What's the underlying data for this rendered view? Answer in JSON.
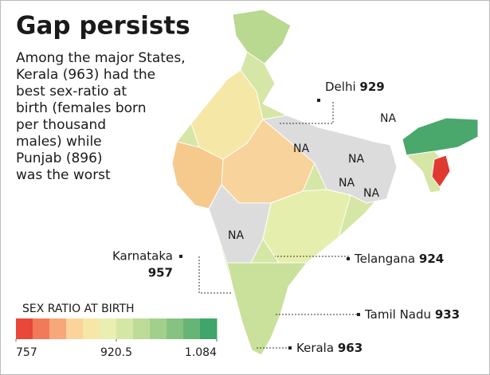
{
  "header": {
    "title": "Gap persists",
    "description": [
      "Among the major States,",
      "Kerala (963) had the",
      "best sex-ratio at",
      "birth (females born",
      "per thousand",
      "males) while",
      "Punjab (896)",
      "was the worst"
    ]
  },
  "callouts": [
    {
      "name": "Delhi",
      "value": 929
    },
    {
      "name": "Karnataka",
      "value": 957
    },
    {
      "name": "Telangana",
      "value": 924
    },
    {
      "name": "Tamil Nadu",
      "value": 933
    },
    {
      "name": "Kerala",
      "value": 963
    }
  ],
  "na_labels": [
    "NA",
    "NA",
    "NA",
    "NA",
    "NA",
    "NA"
  ],
  "legend": {
    "title": "SEX RATIO AT BIRTH",
    "colors": [
      "#e8473a",
      "#f07a5a",
      "#f6a87a",
      "#fbd49c",
      "#f7e7a6",
      "#e9efb0",
      "#d4e7a4",
      "#bcdc98",
      "#a2d08c",
      "#86c382",
      "#66b577",
      "#3fa56a"
    ],
    "ticks": [
      757,
      920.5,
      {
        "value": 1084,
        "label": "1.084"
      }
    ]
  }
}
